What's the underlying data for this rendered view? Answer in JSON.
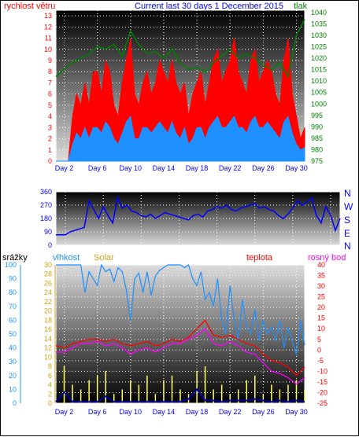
{
  "title": "Current last 30 days 1 December 2015",
  "colors": {
    "wind": "#ff0000",
    "gust_fill": "#ff0000",
    "wind_avg": "#1e90ff",
    "pressure": "#008000",
    "direction": "#0000ff",
    "humidity": "#1e90ff",
    "solar": "#ffff66",
    "rain": "#0000a0",
    "temperature": "#ff0000",
    "dewpoint": "#ff00ff",
    "tick_text": "#0000ff",
    "axis_blue": "#1e90ff"
  },
  "chart_data": [
    {
      "type": "line",
      "name": "wind-pressure",
      "labels": {
        "left": "rychlost větru",
        "right": "tlak"
      },
      "x_ticks": [
        "Day 2",
        "Day 6",
        "Day 10",
        "Day 14",
        "Day 18",
        "Day 22",
        "Day 26",
        "Day 30"
      ],
      "y_left_ticks": [
        "0",
        "1",
        "2",
        "3",
        "4",
        "5",
        "6",
        "7",
        "8",
        "9",
        "10",
        "11",
        "12",
        "13"
      ],
      "y_right_ticks": [
        "975",
        "980",
        "985",
        "990",
        "995",
        "1000",
        "1005",
        "1010",
        "1015",
        "1020",
        "1025",
        "1030",
        "1035",
        "1040"
      ],
      "ylim_left": [
        0,
        13.5
      ],
      "ylim_right": [
        975,
        1041
      ],
      "xlim": [
        1,
        31
      ],
      "series": [
        {
          "name": "rychlost větru",
          "x": [
            1,
            2,
            2.5,
            3,
            3.5,
            4,
            4.5,
            5,
            5.5,
            6,
            6.5,
            7,
            7.5,
            8,
            8.5,
            9,
            9.5,
            10,
            10.5,
            11,
            11.5,
            12,
            12.5,
            13,
            13.5,
            14,
            14.5,
            15,
            15.5,
            16,
            16.5,
            17,
            17.5,
            18,
            18.5,
            19,
            19.5,
            20,
            20.5,
            21,
            21.5,
            22,
            22.5,
            23,
            23.5,
            24,
            24.5,
            25,
            25.5,
            26,
            26.5,
            27,
            27.5,
            28,
            28.5,
            29,
            29.5,
            30,
            30.5,
            31
          ],
          "y": [
            0,
            0,
            0,
            4,
            6,
            5,
            7,
            5,
            8,
            8,
            6,
            9,
            8,
            5,
            4,
            7,
            9,
            11,
            6,
            5,
            7,
            8,
            6,
            7,
            9,
            8,
            7,
            9,
            7,
            6,
            7,
            4,
            6,
            7,
            8,
            5,
            7,
            9,
            10,
            7,
            8,
            9,
            11,
            8,
            7,
            6,
            9,
            10,
            7,
            8,
            9,
            8,
            6,
            5,
            9,
            11,
            6,
            4,
            2,
            3
          ]
        },
        {
          "name": "wind-average",
          "x": [
            1,
            2,
            2.5,
            3,
            3.5,
            4,
            4.5,
            5,
            5.5,
            6,
            6.5,
            7,
            7.5,
            8,
            8.5,
            9,
            9.5,
            10,
            10.5,
            11,
            11.5,
            12,
            12.5,
            13,
            13.5,
            14,
            14.5,
            15,
            15.5,
            16,
            16.5,
            17,
            17.5,
            18,
            18.5,
            19,
            19.5,
            20,
            20.5,
            21,
            21.5,
            22,
            22.5,
            23,
            23.5,
            24,
            24.5,
            25,
            25.5,
            26,
            26.5,
            27,
            27.5,
            28,
            28.5,
            29,
            29.5,
            30,
            30.5,
            31
          ],
          "y": [
            0,
            0,
            0,
            1.5,
            2.5,
            2,
            3,
            2,
            3,
            3,
            2.5,
            3.5,
            3,
            2,
            1.5,
            2.5,
            3.5,
            4,
            2,
            2,
            3,
            3,
            2.5,
            3,
            3.5,
            3,
            2.5,
            3.5,
            2.5,
            2,
            3,
            1.5,
            2,
            3,
            3,
            2,
            3,
            3.5,
            4,
            3,
            3,
            3.5,
            4,
            3,
            3,
            2.5,
            3.5,
            4,
            3,
            3,
            3.5,
            3,
            2.5,
            2,
            3.5,
            4,
            2.5,
            1.5,
            1,
            1.2
          ]
        },
        {
          "name": "tlak",
          "x": [
            1,
            2,
            3,
            4,
            5,
            6,
            7,
            8,
            9,
            10,
            11,
            12,
            13,
            14,
            15,
            16,
            17,
            18,
            19,
            20,
            21,
            22,
            23,
            24,
            25,
            26,
            27,
            28,
            29,
            30,
            31
          ],
          "y": [
            1012,
            1015,
            1018,
            1020,
            1022,
            1025,
            1024,
            1026,
            1021,
            1032,
            1026,
            1022,
            1023,
            1020,
            1024,
            1018,
            1015,
            1016,
            1014,
            1018,
            1021,
            1024,
            1020,
            1022,
            1020,
            1017,
            1015,
            1018,
            1012,
            1030,
            1037
          ]
        }
      ]
    },
    {
      "type": "scatter",
      "name": "wind-direction",
      "y_ticks": [
        "0",
        "90",
        "180",
        "270",
        "360"
      ],
      "ylim": [
        0,
        360
      ],
      "direction_labels": [
        "N",
        "W",
        "S",
        "E",
        "N"
      ],
      "series": [
        {
          "name": "direction",
          "x": [
            1,
            2,
            2.5,
            3,
            3.5,
            4,
            4.5,
            5,
            5.5,
            6,
            6.5,
            7,
            7.5,
            8,
            8.5,
            9,
            9.5,
            10,
            10.5,
            11,
            11.5,
            12,
            12.5,
            13,
            13.5,
            14,
            14.5,
            15,
            15.5,
            16,
            16.5,
            17,
            17.5,
            18,
            18.5,
            19,
            19.5,
            20,
            20.5,
            21,
            21.5,
            22,
            22.5,
            23,
            23.5,
            24,
            24.5,
            25,
            25.5,
            26,
            26.5,
            27,
            27.5,
            28,
            28.5,
            29,
            29.5,
            30,
            30.5,
            31
          ],
          "y": [
            70,
            70,
            90,
            100,
            110,
            120,
            300,
            240,
            180,
            260,
            200,
            150,
            320,
            250,
            270,
            230,
            220,
            200,
            190,
            210,
            180,
            200,
            220,
            210,
            200,
            190,
            180,
            170,
            200,
            210,
            190,
            230,
            240,
            260,
            250,
            270,
            240,
            230,
            250,
            260,
            270,
            280,
            250,
            260,
            240,
            230,
            200,
            180,
            210,
            250,
            300,
            270,
            290,
            320,
            200,
            150,
            260,
            200,
            100,
            180
          ]
        }
      ]
    },
    {
      "type": "line",
      "name": "temperature-humidity",
      "labels": {
        "rain": "srážky",
        "humidity": "vlhkost",
        "solar": "Solar",
        "temp": "teplota",
        "dew": "rosný bod"
      },
      "x_ticks": [
        "Day 2",
        "Day 6",
        "Day 10",
        "Day 14",
        "Day 18",
        "Day 22",
        "Day 26",
        "Day 30"
      ],
      "y_rain_ticks": [
        "0",
        "10",
        "20",
        "30",
        "40",
        "50",
        "60",
        "70",
        "80",
        "90",
        "100"
      ],
      "y_humidity_ticks": [
        "0",
        "2",
        "4",
        "6",
        "8",
        "10",
        "12",
        "14",
        "16",
        "18",
        "20",
        "22",
        "24",
        "26",
        "28",
        "30"
      ],
      "y_temp_ticks": [
        "-25",
        "-20",
        "-15",
        "-10",
        "-5",
        "0",
        "5",
        "10",
        "15",
        "20",
        "25",
        "30",
        "35",
        "40"
      ],
      "ylim_temp": [
        -25,
        40
      ],
      "ylim_humidity": [
        0,
        100
      ],
      "series": [
        {
          "name": "vlhkost",
          "x": [
            1,
            2,
            3,
            4,
            4.5,
            5,
            5.5,
            6,
            6.5,
            7,
            7.5,
            8,
            8.5,
            9,
            9.5,
            10,
            10.5,
            11,
            11.5,
            12,
            12.5,
            13,
            13.5,
            14,
            14.5,
            15,
            15.5,
            16,
            16.5,
            17,
            17.5,
            18,
            18.5,
            19,
            19.5,
            20,
            20.5,
            21,
            21.5,
            22,
            22.5,
            23,
            23.5,
            24,
            24.5,
            25,
            25.5,
            26,
            26.5,
            27,
            27.5,
            28,
            28.5,
            29,
            29.5,
            30,
            30.5,
            31
          ],
          "y": [
            100,
            100,
            100,
            100,
            80,
            95,
            90,
            85,
            100,
            95,
            97,
            88,
            98,
            95,
            82,
            60,
            90,
            94,
            80,
            95,
            78,
            92,
            96,
            98,
            100,
            100,
            100,
            100,
            98,
            100,
            90,
            85,
            95,
            75,
            80,
            70,
            90,
            60,
            50,
            85,
            60,
            45,
            75,
            55,
            50,
            68,
            45,
            60,
            50,
            55,
            45,
            60,
            40,
            55,
            45,
            35,
            60,
            42
          ]
        },
        {
          "name": "teplota",
          "x": [
            1,
            2,
            3,
            4,
            5,
            6,
            7,
            8,
            9,
            10,
            11,
            12,
            13,
            14,
            15,
            16,
            17,
            18,
            19,
            20,
            21,
            22,
            23,
            24,
            25,
            26,
            27,
            28,
            29,
            30,
            31
          ],
          "y": [
            2,
            1,
            3,
            4,
            5,
            5,
            4,
            5,
            3,
            2,
            3,
            4,
            2,
            3,
            5,
            4,
            6,
            10,
            14,
            7,
            6,
            7,
            5,
            3,
            2,
            -2,
            -5,
            -6,
            -8,
            -12,
            -8
          ]
        },
        {
          "name": "rosný bod",
          "x": [
            1,
            2,
            3,
            4,
            5,
            6,
            7,
            8,
            9,
            10,
            11,
            12,
            13,
            14,
            15,
            16,
            17,
            18,
            19,
            20,
            21,
            22,
            23,
            24,
            25,
            26,
            27,
            28,
            29,
            30,
            31
          ],
          "y": [
            -1,
            -1,
            1,
            3,
            3,
            4,
            2,
            3,
            1,
            -2,
            0,
            1,
            -1,
            1,
            3,
            3,
            5,
            7,
            10,
            3,
            2,
            4,
            2,
            -1,
            -2,
            -6,
            -10,
            -11,
            -13,
            -16,
            -13
          ]
        },
        {
          "name": "Solar",
          "x": [
            2,
            3,
            4,
            5,
            6,
            7,
            8,
            9,
            10,
            11,
            12,
            13,
            14,
            15,
            16,
            17,
            18,
            19,
            20,
            21,
            22,
            23,
            24,
            25,
            26,
            27,
            28,
            29,
            30,
            31
          ],
          "y": [
            8,
            4,
            3,
            5,
            6,
            7,
            2,
            3,
            5,
            4,
            6,
            2,
            5,
            6,
            3,
            2,
            7,
            8,
            3,
            4,
            2,
            3,
            5,
            6,
            2,
            4,
            3,
            4,
            5,
            3
          ]
        },
        {
          "name": "srážky",
          "x": [
            1,
            2,
            3,
            4,
            5,
            6,
            7,
            8,
            9,
            10,
            11,
            12,
            13,
            14,
            15,
            16,
            17,
            18,
            19,
            20,
            21,
            22,
            23,
            24,
            25,
            26,
            27,
            28,
            29,
            30,
            31
          ],
          "y": [
            1,
            8,
            1,
            1,
            1,
            1,
            5,
            1,
            1,
            1,
            1,
            1,
            1,
            1,
            1,
            1,
            3,
            10,
            2,
            2,
            1,
            2,
            2,
            2,
            3,
            2,
            1,
            2,
            1,
            2,
            1
          ]
        }
      ]
    }
  ]
}
